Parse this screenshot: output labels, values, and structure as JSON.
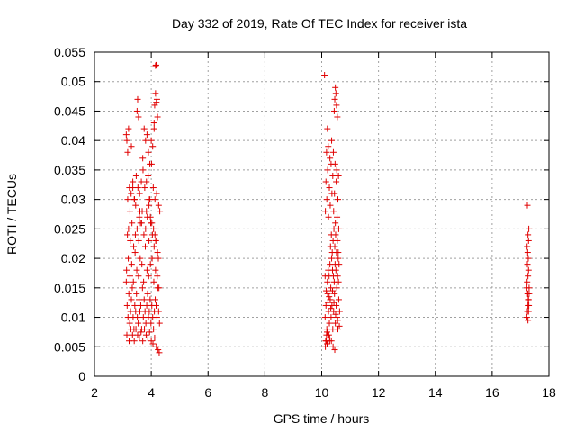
{
  "chart_data": {
    "type": "scatter",
    "title": "Day 332 of 2019, Rate Of TEC Index for receiver ista",
    "xlabel": "GPS time / hours",
    "ylabel": "ROTI / TECUs",
    "xlim": [
      2,
      18
    ],
    "ylim": [
      0,
      0.055
    ],
    "xticks": [
      2,
      4,
      6,
      8,
      10,
      12,
      14,
      16,
      18
    ],
    "xtick_labels": [
      "2",
      "4",
      "6",
      "8",
      "10",
      "12",
      "14",
      "16",
      "18"
    ],
    "yticks": [
      0,
      0.005,
      0.01,
      0.015,
      0.02,
      0.025,
      0.03,
      0.035,
      0.04,
      0.045,
      0.05,
      0.055
    ],
    "ytick_labels": [
      "0",
      "0.005",
      "0.01",
      "0.015",
      "0.02",
      "0.025",
      "0.03",
      "0.035",
      "0.04",
      "0.045",
      "0.05",
      "0.055"
    ],
    "grid": true,
    "marker": "+",
    "color": "#e00000",
    "series": [
      {
        "x": [
          3.12,
          3.15,
          3.18,
          3.21,
          3.24,
          3.27,
          3.3,
          3.33,
          3.36,
          3.39,
          3.42,
          3.45,
          3.48,
          3.51,
          3.54,
          3.57,
          3.6,
          3.63,
          3.66,
          3.69,
          3.72,
          3.75,
          3.78,
          3.81,
          3.84,
          3.87,
          3.9,
          3.93,
          3.96,
          3.99,
          4.02,
          4.05,
          4.08,
          4.11,
          4.14,
          4.17,
          4.2,
          4.23,
          4.26,
          4.29,
          3.13,
          3.19,
          3.25,
          3.31,
          3.37,
          3.43,
          3.49,
          3.55,
          3.61,
          3.67,
          3.73,
          3.79,
          3.85,
          3.91,
          3.97,
          4.03,
          4.09,
          4.15,
          4.21,
          4.27,
          3.14,
          3.22,
          3.28,
          3.34,
          3.4,
          3.46,
          3.52,
          3.58,
          3.64,
          3.7,
          3.76,
          3.82,
          3.88,
          3.94,
          4.0,
          4.06,
          4.12,
          4.18,
          4.24,
          4.28,
          3.16,
          3.2,
          3.26,
          3.32,
          3.38,
          3.44,
          3.5,
          3.56,
          3.62,
          3.68,
          3.74,
          3.8,
          3.86,
          3.92,
          3.98,
          4.04,
          4.1,
          4.16,
          4.22,
          4.25,
          3.17,
          3.23,
          3.29,
          3.35,
          3.41,
          3.47,
          3.53,
          3.59,
          3.65,
          3.71,
          3.77,
          3.83,
          3.89,
          3.95,
          4.01,
          4.07,
          4.13,
          4.19,
          4.26,
          4.3,
          3.12,
          3.14,
          3.17,
          3.2,
          3.3,
          3.5,
          3.52,
          3.55,
          3.75,
          3.8,
          3.85,
          3.9,
          3.95,
          4.0,
          4.05,
          4.1,
          4.12,
          4.15,
          4.18,
          4.2,
          4.15,
          4.17,
          4.22,
          4.1,
          3.7,
          3.6,
          3.58,
          3.45,
          3.4,
          3.35,
          3.25,
          3.9,
          3.92,
          3.97,
          4.02,
          4.08,
          4.13,
          4.16,
          3.83,
          3.66
        ],
        "y": [
          0.016,
          0.012,
          0.01,
          0.014,
          0.009,
          0.011,
          0.013,
          0.015,
          0.01,
          0.008,
          0.012,
          0.011,
          0.014,
          0.01,
          0.009,
          0.013,
          0.011,
          0.012,
          0.008,
          0.015,
          0.01,
          0.013,
          0.011,
          0.009,
          0.012,
          0.014,
          0.01,
          0.011,
          0.013,
          0.009,
          0.012,
          0.01,
          0.008,
          0.011,
          0.013,
          0.012,
          0.01,
          0.015,
          0.011,
          0.009,
          0.018,
          0.02,
          0.017,
          0.019,
          0.016,
          0.021,
          0.018,
          0.017,
          0.02,
          0.019,
          0.016,
          0.022,
          0.018,
          0.017,
          0.019,
          0.02,
          0.016,
          0.018,
          0.017,
          0.015,
          0.007,
          0.006,
          0.008,
          0.007,
          0.006,
          0.008,
          0.007,
          0.0065,
          0.0075,
          0.006,
          0.008,
          0.007,
          0.0065,
          0.0075,
          0.006,
          0.0055,
          0.0065,
          0.005,
          0.0045,
          0.004,
          0.024,
          0.025,
          0.023,
          0.026,
          0.022,
          0.024,
          0.025,
          0.023,
          0.026,
          0.028,
          0.024,
          0.025,
          0.027,
          0.023,
          0.026,
          0.024,
          0.022,
          0.023,
          0.021,
          0.02,
          0.03,
          0.032,
          0.031,
          0.033,
          0.03,
          0.034,
          0.032,
          0.031,
          0.033,
          0.035,
          0.032,
          0.033,
          0.034,
          0.03,
          0.036,
          0.032,
          0.03,
          0.031,
          0.029,
          0.028,
          0.041,
          0.04,
          0.038,
          0.042,
          0.039,
          0.045,
          0.047,
          0.044,
          0.042,
          0.04,
          0.041,
          0.038,
          0.036,
          0.04,
          0.039,
          0.042,
          0.046,
          0.048,
          0.0465,
          0.047,
          0.0527,
          0.0528,
          0.044,
          0.043,
          0.037,
          0.028,
          0.027,
          0.029,
          0.03,
          0.032,
          0.028,
          0.03,
          0.029,
          0.027,
          0.026,
          0.025,
          0.024,
          0.023,
          0.028,
          0.026
        ]
      },
      {
        "x": [
          10.12,
          10.15,
          10.18,
          10.21,
          10.24,
          10.27,
          10.3,
          10.33,
          10.36,
          10.39,
          10.42,
          10.45,
          10.48,
          10.51,
          10.54,
          10.57,
          10.6,
          10.63,
          10.14,
          10.17,
          10.2,
          10.23,
          10.26,
          10.29,
          10.32,
          10.35,
          10.38,
          10.41,
          10.44,
          10.47,
          10.5,
          10.53,
          10.56,
          10.59,
          10.13,
          10.16,
          10.19,
          10.22,
          10.25,
          10.28,
          10.31,
          10.34,
          10.37,
          10.4,
          10.43,
          10.46,
          10.49,
          10.52,
          10.55,
          10.58,
          10.61,
          10.13,
          10.18,
          10.24,
          10.3,
          10.36,
          10.42,
          10.48,
          10.54,
          10.6,
          10.15,
          10.21,
          10.27,
          10.33,
          10.39,
          10.45,
          10.51,
          10.57,
          10.17,
          10.23,
          10.29,
          10.35,
          10.41,
          10.47,
          10.53,
          10.59,
          10.1,
          10.2,
          10.44,
          10.46,
          10.48,
          10.5,
          10.52,
          10.55,
          10.16,
          10.22,
          10.26,
          10.32,
          10.38,
          10.43,
          10.49,
          10.56,
          10.62,
          10.19,
          10.28,
          10.34,
          10.4,
          10.46,
          10.12,
          10.58
        ],
        "y": [
          0.01,
          0.012,
          0.008,
          0.014,
          0.011,
          0.009,
          0.013,
          0.01,
          0.012,
          0.008,
          0.011,
          0.014,
          0.009,
          0.012,
          0.01,
          0.008,
          0.013,
          0.011,
          0.006,
          0.007,
          0.016,
          0.018,
          0.017,
          0.019,
          0.015,
          0.02,
          0.018,
          0.017,
          0.016,
          0.019,
          0.018,
          0.015,
          0.017,
          0.016,
          0.005,
          0.006,
          0.0055,
          0.0065,
          0.007,
          0.006,
          0.022,
          0.024,
          0.021,
          0.023,
          0.025,
          0.022,
          0.024,
          0.021,
          0.023,
          0.02,
          0.019,
          0.028,
          0.03,
          0.027,
          0.029,
          0.031,
          0.028,
          0.026,
          0.027,
          0.025,
          0.033,
          0.035,
          0.032,
          0.036,
          0.034,
          0.031,
          0.033,
          0.03,
          0.038,
          0.039,
          0.037,
          0.04,
          0.038,
          0.036,
          0.035,
          0.034,
          0.0511,
          0.042,
          0.045,
          0.047,
          0.049,
          0.048,
          0.046,
          0.044,
          0.0145,
          0.0125,
          0.0135,
          0.0115,
          0.0145,
          0.0125,
          0.0105,
          0.0095,
          0.0085,
          0.0075,
          0.0065,
          0.006,
          0.005,
          0.0045,
          0.017,
          0.021
        ]
      },
      {
        "x": [
          17.22,
          17.24,
          17.26,
          17.28,
          17.3,
          17.22,
          17.25,
          17.27,
          17.29,
          17.23,
          17.26,
          17.28,
          17.24,
          17.27,
          17.3,
          17.25,
          17.23,
          17.28,
          17.26,
          17.29,
          17.24,
          17.27,
          17.25,
          17.28,
          17.26
        ],
        "y": [
          0.01,
          0.011,
          0.012,
          0.013,
          0.014,
          0.015,
          0.014,
          0.013,
          0.012,
          0.016,
          0.017,
          0.018,
          0.019,
          0.02,
          0.015,
          0.021,
          0.022,
          0.023,
          0.024,
          0.025,
          0.029,
          0.013,
          0.014,
          0.011,
          0.0095
        ]
      }
    ]
  }
}
